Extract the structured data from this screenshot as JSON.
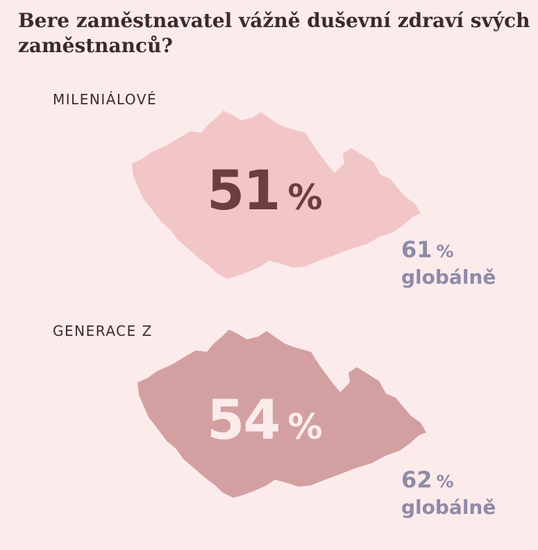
{
  "title": "Bere zaměstnavatel vážně duševní zdraví svých zaměstnanců?",
  "groups": [
    {
      "label": "MILENIÁLOVÉ",
      "value": "51",
      "unit": "%",
      "global_value": "61",
      "global_unit": "%",
      "global_label": "globálně"
    },
    {
      "label": "GENERACE Z",
      "value": "54",
      "unit": "%",
      "global_value": "62",
      "global_unit": "%",
      "global_label": "globálně"
    }
  ],
  "colors": {
    "background": "#fcebeb",
    "map_millennials": "#f2c6c7",
    "map_genz": "#d3a0a2",
    "value_millennials": "#6b3f40",
    "value_genz": "#fcebeb",
    "global_text": "#8f8aa8"
  },
  "chart_data": {
    "type": "table",
    "title": "Bere zaměstnavatel vážně duševní zdraví svých zaměstnanců?",
    "categories": [
      "MILENIÁLOVÉ",
      "GENERACE Z"
    ],
    "series": [
      {
        "name": "",
        "values": [
          51,
          54
        ]
      },
      {
        "name": "globálně",
        "values": [
          61,
          62
        ]
      }
    ],
    "unit": "%"
  }
}
